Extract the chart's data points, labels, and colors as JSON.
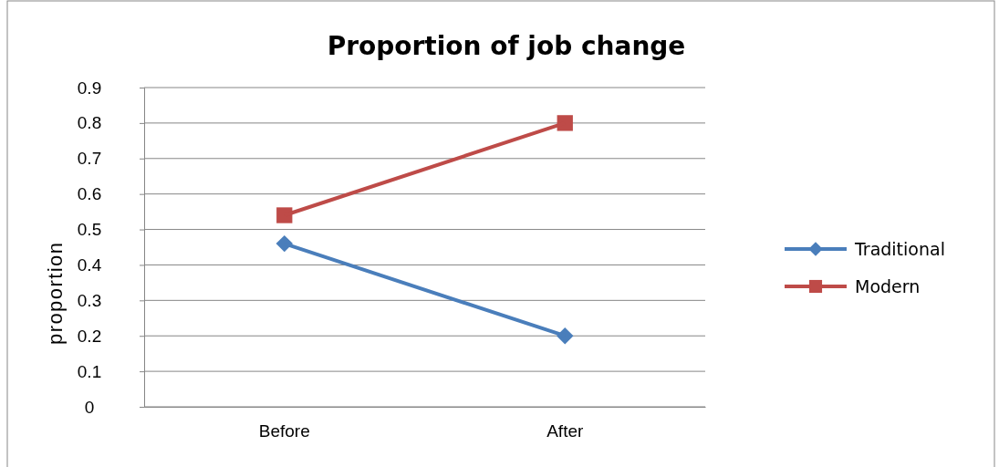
{
  "chart_data": {
    "type": "line",
    "title": "Proportion of job change",
    "ylabel": "proportion",
    "categories": [
      "Before",
      "After"
    ],
    "series": [
      {
        "name": "Traditional",
        "color": "#4a7ebb",
        "marker": "diamond",
        "values": [
          0.46,
          0.2
        ]
      },
      {
        "name": "Modern",
        "color": "#be4b48",
        "marker": "square",
        "values": [
          0.54,
          0.8
        ]
      }
    ],
    "ylim": [
      0,
      0.9
    ],
    "yticks": [
      0,
      0.1,
      0.2,
      0.3,
      0.4,
      0.5,
      0.6,
      0.7,
      0.8,
      0.9
    ],
    "grid": "y",
    "legend": "right",
    "line_style": "solid"
  }
}
